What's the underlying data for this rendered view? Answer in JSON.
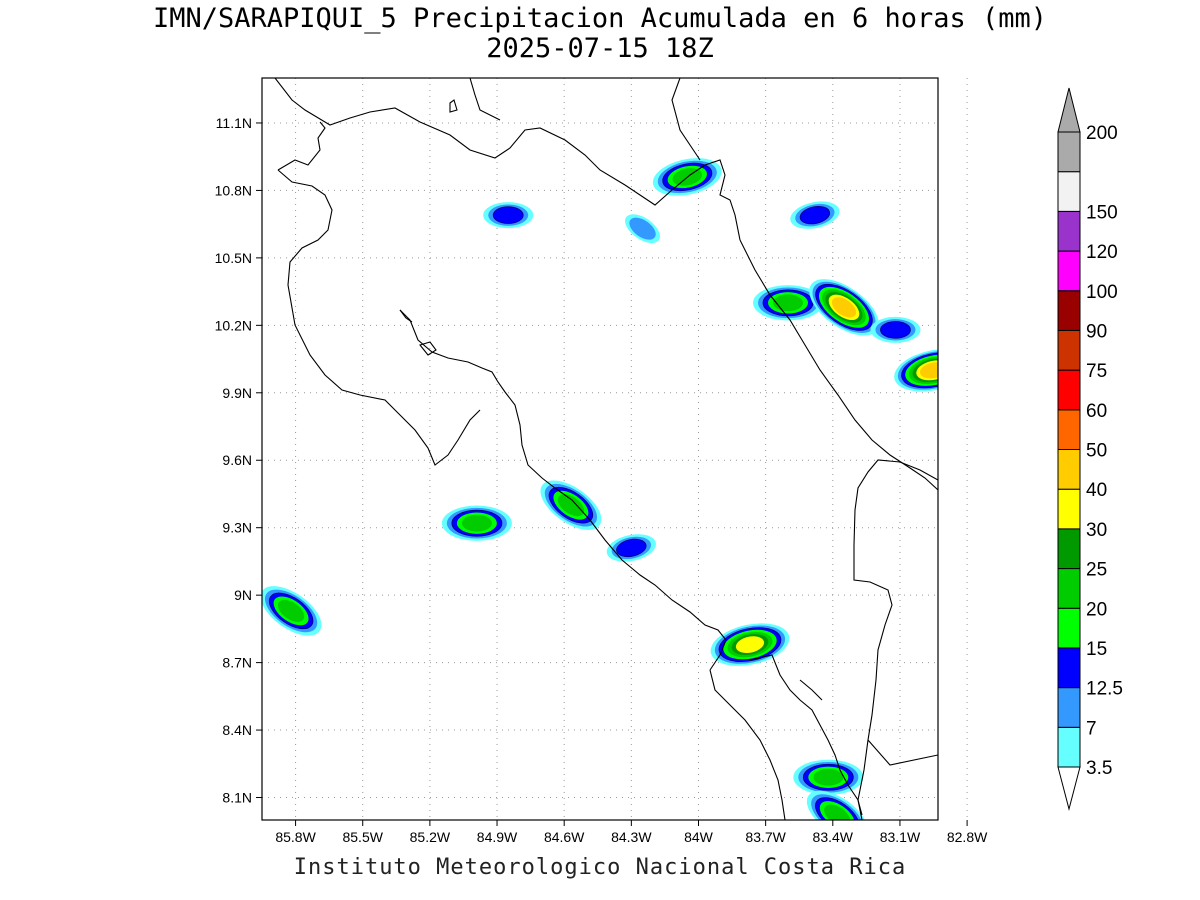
{
  "title": {
    "line1": "IMN/SARAPIQUI_5 Precipitacion Acumulada en 6 horas (mm)",
    "line2": "2025-07-15 18Z"
  },
  "credit": "Instituto Meteorologico Nacional Costa Rica",
  "map": {
    "lon_range": [
      -85.95,
      -82.93
    ],
    "lat_range": [
      8.0,
      11.3
    ],
    "lat_ticks": [
      {
        "value": 11.1,
        "label": "11.1N"
      },
      {
        "value": 10.8,
        "label": "10.8N"
      },
      {
        "value": 10.5,
        "label": "10.5N"
      },
      {
        "value": 10.2,
        "label": "10.2N"
      },
      {
        "value": 9.9,
        "label": "9.9N"
      },
      {
        "value": 9.6,
        "label": "9.6N"
      },
      {
        "value": 9.3,
        "label": "9.3N"
      },
      {
        "value": 9.0,
        "label": "9N"
      },
      {
        "value": 8.7,
        "label": "8.7N"
      },
      {
        "value": 8.4,
        "label": "8.4N"
      },
      {
        "value": 8.1,
        "label": "8.1N"
      }
    ],
    "lon_ticks": [
      {
        "value": -85.8,
        "label": "85.8W"
      },
      {
        "value": -85.5,
        "label": "85.5W"
      },
      {
        "value": -85.2,
        "label": "85.2W"
      },
      {
        "value": -84.9,
        "label": "84.9W"
      },
      {
        "value": -84.6,
        "label": "84.6W"
      },
      {
        "value": -84.3,
        "label": "84.3W"
      },
      {
        "value": -84.0,
        "label": "84W"
      },
      {
        "value": -83.7,
        "label": "83.7W"
      },
      {
        "value": -83.4,
        "label": "83.4W"
      },
      {
        "value": -83.1,
        "label": "83.1W"
      },
      {
        "value": -82.8,
        "label": "82.8W"
      }
    ],
    "precip_cells": [
      {
        "lon": -84.05,
        "lat": 10.86,
        "max_mm": 20
      },
      {
        "lon": -84.85,
        "lat": 10.69,
        "max_mm": 12.5
      },
      {
        "lon": -84.25,
        "lat": 10.63,
        "max_mm": 7
      },
      {
        "lon": -83.48,
        "lat": 10.69,
        "max_mm": 12.5
      },
      {
        "lon": -83.6,
        "lat": 10.3,
        "max_mm": 20
      },
      {
        "lon": -83.35,
        "lat": 10.28,
        "max_mm": 40
      },
      {
        "lon": -82.95,
        "lat": 10.0,
        "max_mm": 40
      },
      {
        "lon": -83.12,
        "lat": 10.18,
        "max_mm": 12.5
      },
      {
        "lon": -84.57,
        "lat": 9.4,
        "max_mm": 20
      },
      {
        "lon": -84.3,
        "lat": 9.21,
        "max_mm": 12.5
      },
      {
        "lon": -84.99,
        "lat": 9.32,
        "max_mm": 20
      },
      {
        "lon": -85.82,
        "lat": 8.93,
        "max_mm": 20
      },
      {
        "lon": -83.77,
        "lat": 8.78,
        "max_mm": 30
      },
      {
        "lon": -83.42,
        "lat": 8.19,
        "max_mm": 20
      },
      {
        "lon": -83.38,
        "lat": 8.02,
        "max_mm": 20
      }
    ]
  },
  "colorbar": {
    "levels": [
      {
        "label": "3.5",
        "color": "#66ffff"
      },
      {
        "label": "7",
        "color": "#3399ff"
      },
      {
        "label": "12.5",
        "color": "#0000ff"
      },
      {
        "label": "15",
        "color": "#00ff00"
      },
      {
        "label": "20",
        "color": "#00cc00"
      },
      {
        "label": "25",
        "color": "#009900"
      },
      {
        "label": "30",
        "color": "#ffff00"
      },
      {
        "label": "40",
        "color": "#ffcc00"
      },
      {
        "label": "50",
        "color": "#ff6600"
      },
      {
        "label": "60",
        "color": "#ff0000"
      },
      {
        "label": "75",
        "color": "#cc3300"
      },
      {
        "label": "90",
        "color": "#990000"
      },
      {
        "label": "100",
        "color": "#ff00ff"
      },
      {
        "label": "120",
        "color": "#9933cc"
      },
      {
        "label": "150",
        "color": "#f2f2f2"
      },
      {
        "label": "200",
        "color": "#aaaaaa"
      }
    ]
  }
}
